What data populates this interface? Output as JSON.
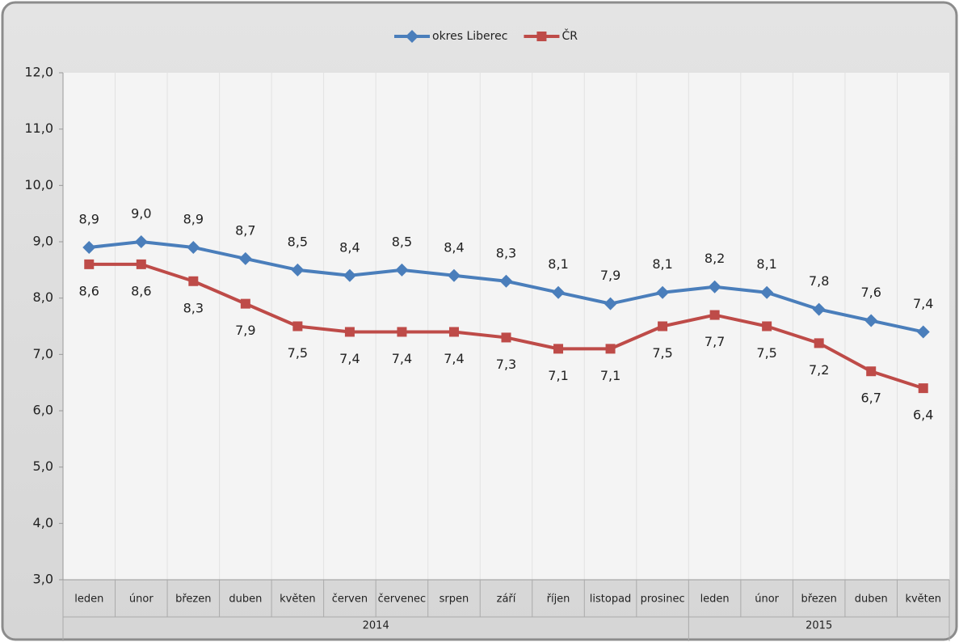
{
  "chart_data": {
    "type": "line",
    "categories": [
      "leden",
      "únor",
      "březen",
      "duben",
      "květen",
      "červen",
      "červenec",
      "srpen",
      "září",
      "říjen",
      "listopad",
      "prosinec",
      "leden",
      "únor",
      "březen",
      "duben",
      "květen"
    ],
    "groups": [
      {
        "label": "2014",
        "count": 12
      },
      {
        "label": "2015",
        "count": 5
      }
    ],
    "series": [
      {
        "name": "okres Liberec",
        "color": "#4a7ebb",
        "marker": "diamond",
        "label_position": "above",
        "values": [
          8.9,
          9.0,
          8.9,
          8.7,
          8.5,
          8.4,
          8.5,
          8.4,
          8.3,
          8.1,
          7.9,
          8.1,
          8.2,
          8.1,
          7.8,
          7.6,
          7.4
        ],
        "value_labels": [
          "8,9",
          "9,0",
          "8,9",
          "8,7",
          "8,5",
          "8,4",
          "8,5",
          "8,4",
          "8,3",
          "8,1",
          "7,9",
          "8,1",
          "8,2",
          "8,1",
          "7,8",
          "7,6",
          "7,4"
        ]
      },
      {
        "name": "ČR",
        "color": "#be4b48",
        "marker": "square",
        "label_position": "below",
        "values": [
          8.6,
          8.6,
          8.3,
          7.9,
          7.5,
          7.4,
          7.4,
          7.4,
          7.3,
          7.1,
          7.1,
          7.5,
          7.7,
          7.5,
          7.2,
          6.7,
          6.4
        ],
        "value_labels": [
          "8,6",
          "8,6",
          "8,3",
          "7,9",
          "7,5",
          "7,4",
          "7,4",
          "7,4",
          "7,3",
          "7,1",
          "7,1",
          "7,5",
          "7,7",
          "7,5",
          "7,2",
          "6,7",
          "6,4"
        ]
      }
    ],
    "ylim": [
      3,
      12
    ],
    "yticks": [
      {
        "value": 3,
        "label": "3,0"
      },
      {
        "value": 4,
        "label": "4,0"
      },
      {
        "value": 5,
        "label": "5,0"
      },
      {
        "value": 6,
        "label": "6,0"
      },
      {
        "value": 7,
        "label": "7,0"
      },
      {
        "value": 8,
        "label": "8,0"
      },
      {
        "value": 9,
        "label": "9,0"
      },
      {
        "value": 10,
        "label": "10,0"
      },
      {
        "value": 11,
        "label": "11,0"
      },
      {
        "value": 12,
        "label": "12,0"
      }
    ],
    "legend": "top"
  }
}
